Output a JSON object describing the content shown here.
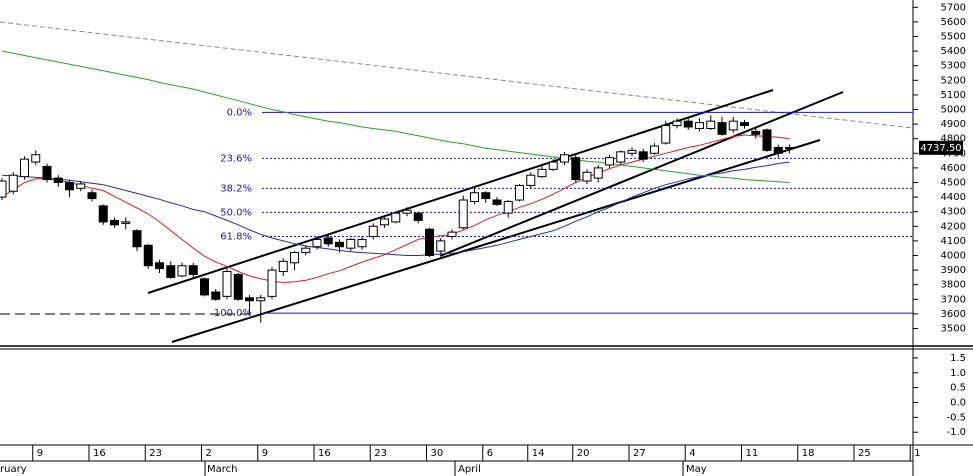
{
  "chart_data": [
    {
      "type": "candlestick",
      "categories": [
        null,
        null,
        null,
        "9",
        null,
        null,
        null,
        null,
        "16",
        null,
        null,
        null,
        null,
        "23",
        null,
        null,
        null,
        null,
        "2",
        null,
        null,
        null,
        null,
        "9",
        null,
        null,
        null,
        null,
        "16",
        null,
        null,
        null,
        null,
        "23",
        null,
        null,
        null,
        null,
        "30",
        null,
        null,
        null,
        null,
        "6",
        null,
        null,
        null,
        "14",
        null,
        null,
        null,
        "20",
        null,
        null,
        null,
        null,
        "27",
        null,
        null,
        null,
        null,
        "4",
        null,
        null,
        null,
        null,
        "11",
        null,
        null,
        null,
        null,
        "18",
        null,
        null,
        null,
        null,
        "25",
        null,
        null,
        null,
        null,
        "1"
      ],
      "open": [
        4400,
        4440,
        4540,
        4640,
        4610,
        4530,
        4500,
        4460,
        4430,
        4340,
        4240,
        4220,
        4170,
        4070,
        3950,
        3930,
        3860,
        3930,
        3840,
        3750,
        3720,
        3870,
        3710,
        3690,
        3720,
        3890,
        3950,
        4020,
        4060,
        4120,
        4090,
        4050,
        4060,
        4130,
        4210,
        4230,
        4290,
        4290,
        4180,
        4030,
        4130,
        4190,
        4370,
        4430,
        4380,
        4290,
        4380,
        4480,
        4540,
        4590,
        4640,
        4670,
        4510,
        4530,
        4620,
        4640,
        4700,
        4710,
        4700,
        4770,
        4890,
        4920,
        4870,
        4870,
        4910,
        4860,
        4910,
        4850,
        4860,
        4740,
        4740,
        null,
        null,
        null,
        null,
        null,
        null,
        null,
        null,
        null,
        null,
        null
      ],
      "high": [
        4530,
        4570,
        4680,
        4720,
        4630,
        4550,
        4520,
        4510,
        4450,
        4350,
        4260,
        4260,
        4180,
        4080,
        3970,
        3960,
        3950,
        3950,
        3850,
        3770,
        3910,
        3880,
        3730,
        3730,
        3920,
        3980,
        4030,
        4070,
        4130,
        4150,
        4110,
        4120,
        4130,
        4220,
        4270,
        4300,
        4330,
        4300,
        4190,
        4120,
        4180,
        4410,
        4470,
        4440,
        4400,
        4380,
        4490,
        4570,
        4610,
        4660,
        4710,
        4690,
        4590,
        4620,
        4690,
        4720,
        4740,
        4730,
        4770,
        4920,
        4940,
        4950,
        4940,
        4960,
        4950,
        4950,
        4930,
        4870,
        4870,
        4760,
        4760,
        null,
        null,
        null,
        null,
        null,
        null,
        null,
        null,
        null,
        null,
        null
      ],
      "low": [
        4380,
        4420,
        4520,
        4620,
        4500,
        4470,
        4400,
        4440,
        4370,
        4210,
        4190,
        4180,
        4030,
        3910,
        3880,
        3840,
        3850,
        3850,
        3720,
        3690,
        3700,
        3690,
        3600,
        3540,
        3700,
        3860,
        3900,
        4000,
        4040,
        4060,
        4020,
        4030,
        4040,
        4110,
        4190,
        4220,
        4270,
        4220,
        3990,
        4010,
        4110,
        4180,
        4350,
        4360,
        4340,
        4260,
        4370,
        4460,
        4530,
        4580,
        4620,
        4500,
        4490,
        4500,
        4600,
        4620,
        4680,
        4640,
        4690,
        4760,
        4870,
        4860,
        4850,
        4860,
        4820,
        4840,
        4870,
        4800,
        4710,
        4670,
        4700,
        null,
        null,
        null,
        null,
        null,
        null,
        null,
        null,
        null,
        null,
        null
      ],
      "close": [
        4510,
        4550,
        4660,
        4690,
        4520,
        4500,
        4450,
        4490,
        4390,
        4230,
        4210,
        4230,
        4060,
        3930,
        3910,
        3850,
        3930,
        3870,
        3730,
        3700,
        3890,
        3700,
        3690,
        3710,
        3900,
        3960,
        4020,
        4050,
        4110,
        4080,
        4060,
        4110,
        4110,
        4200,
        4250,
        4290,
        4310,
        4240,
        4000,
        4100,
        4160,
        4380,
        4430,
        4390,
        4350,
        4370,
        4480,
        4550,
        4590,
        4640,
        4690,
        4520,
        4570,
        4600,
        4670,
        4710,
        4720,
        4660,
        4750,
        4890,
        4920,
        4880,
        4910,
        4920,
        4830,
        4920,
        4890,
        4830,
        4720,
        4700,
        4737.5,
        null,
        null,
        null,
        null,
        null,
        null,
        null,
        null,
        null,
        null,
        null
      ],
      "last_price_label": "4737.50",
      "lines": [
        {
          "color": "#d42020",
          "values": [
            4400,
            4450,
            4500,
            4525,
            4525,
            4515,
            4500,
            4480,
            4460,
            4445,
            4405,
            4365,
            4325,
            4285,
            4230,
            4170,
            4110,
            4050,
            3995,
            3955,
            3925,
            3890,
            3860,
            3840,
            3825,
            3815,
            3820,
            3830,
            3850,
            3875,
            3895,
            3925,
            3955,
            3980,
            4005,
            4040,
            4075,
            4110,
            4125,
            4135,
            4145,
            4175,
            4205,
            4245,
            4275,
            4300,
            4330,
            4355,
            4385,
            4420,
            4460,
            4500,
            4535,
            4565,
            4595,
            4620,
            4640,
            4660,
            4680,
            4700,
            4720,
            4740,
            4755,
            4775,
            4795,
            4815,
            4825,
            4820,
            4815,
            4810,
            4800,
            null,
            null,
            null,
            null,
            null,
            null,
            null,
            null,
            null,
            null,
            null
          ]
        },
        {
          "color": "#2030a8",
          "values": [
            4550,
            4545,
            4540,
            4535,
            4530,
            4522,
            4515,
            4505,
            4495,
            4485,
            4465,
            4445,
            4425,
            4405,
            4385,
            4360,
            4340,
            4315,
            4300,
            4270,
            4240,
            4210,
            4175,
            4145,
            4120,
            4100,
            4080,
            4065,
            4055,
            4045,
            4035,
            4025,
            4020,
            4015,
            4010,
            4005,
            4000,
            4000,
            4005,
            4010,
            4015,
            4025,
            4040,
            4055,
            4070,
            4090,
            4110,
            4130,
            4150,
            4170,
            4200,
            4235,
            4265,
            4300,
            4330,
            4365,
            4400,
            4430,
            4460,
            4485,
            4505,
            4525,
            4540,
            4555,
            4565,
            4580,
            4590,
            4605,
            4615,
            4630,
            4640,
            null,
            null,
            null,
            null,
            null,
            null,
            null,
            null,
            null,
            null,
            null
          ]
        },
        {
          "color": "#2ca02c",
          "values": [
            5400,
            5385,
            5370,
            5355,
            5340,
            5325,
            5310,
            5295,
            5280,
            5265,
            5250,
            5235,
            5220,
            5205,
            5185,
            5170,
            5155,
            5140,
            5120,
            5100,
            5080,
            5060,
            5040,
            5020,
            5000,
            4985,
            4965,
            4950,
            4935,
            4920,
            4910,
            4895,
            4880,
            4870,
            4860,
            4850,
            4835,
            4820,
            4805,
            4790,
            4775,
            4765,
            4750,
            4735,
            4725,
            4715,
            4705,
            4695,
            4685,
            4675,
            4665,
            4655,
            4645,
            4640,
            4630,
            4620,
            4610,
            4600,
            4590,
            4580,
            4570,
            4560,
            4550,
            4545,
            4535,
            4530,
            4520,
            4515,
            4510,
            4505,
            4500,
            null,
            null,
            null,
            null,
            null,
            null,
            null,
            null,
            null,
            null,
            null
          ]
        }
      ],
      "fib_levels": [
        {
          "label": "0.0%",
          "price": 4980
        },
        {
          "label": "23.6%",
          "price": 4665
        },
        {
          "label": "38.2%",
          "price": 4460
        },
        {
          "label": "50.0%",
          "price": 4295
        },
        {
          "label": "61.8%",
          "price": 4130
        },
        {
          "label": "100.0%",
          "price": 3605
        }
      ],
      "fib_color": "#1a1aa0",
      "months": [
        "ruary",
        "March",
        "April",
        "May"
      ],
      "ylim": [
        3380,
        5750
      ],
      "yticks": [
        3500,
        3600,
        3700,
        3800,
        3900,
        4000,
        4100,
        4200,
        4300,
        4400,
        4500,
        4600,
        4700,
        4800,
        4900,
        5000,
        5100,
        5200,
        5300,
        5400,
        5500,
        5600,
        5700
      ]
    },
    {
      "type": "indicator",
      "ylim": [
        -1.43,
        1.8
      ],
      "yticks": [
        1.5,
        {
          "value": 1,
          "label": "1.0"
        },
        0.5,
        {
          "value": 0,
          "label": "0.0"
        },
        -0.5,
        {
          "value": -1,
          "label": "-1.0"
        }
      ]
    }
  ]
}
